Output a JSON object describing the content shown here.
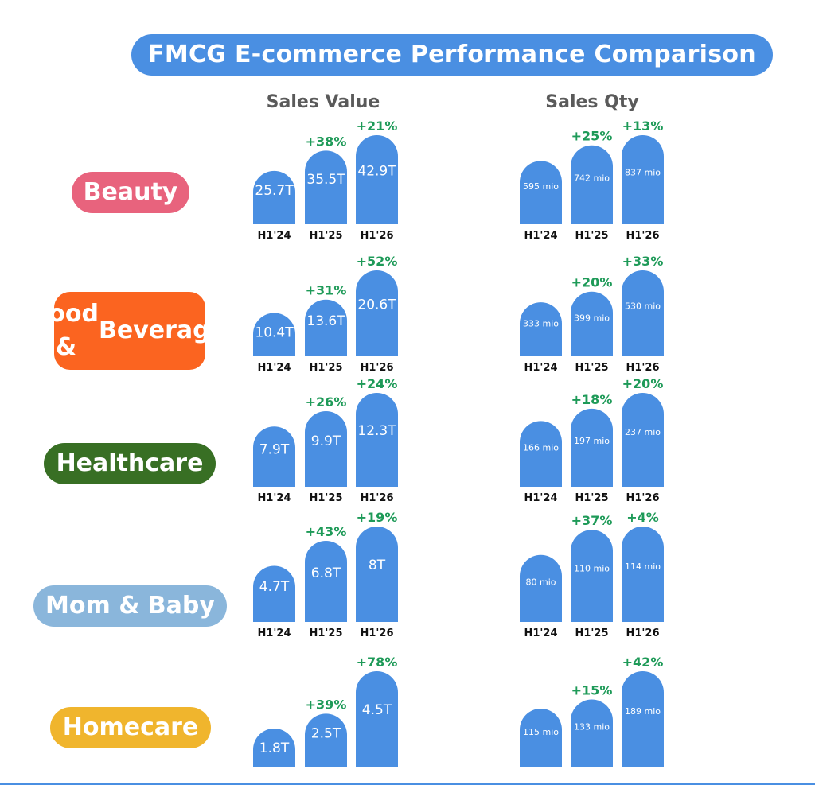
{
  "title": "FMCG E-commerce Performance Comparison",
  "headers": {
    "sales_value": "Sales Value",
    "sales_qty": "Sales Qty"
  },
  "colors": {
    "bar": "#4a8fe2",
    "growth": "#1e9a58",
    "period_label": "#111111",
    "title_bg": "#4a8fe2"
  },
  "chart_data": {
    "type": "bar",
    "categories": [
      "H1'24",
      "H1'25",
      "H1'26"
    ],
    "panels": [
      {
        "name": "Beauty",
        "color": "#e8637d",
        "sales_value": {
          "values": [
            25.7,
            35.5,
            42.9
          ],
          "labels": [
            "25.7T",
            "35.5T",
            "42.9T"
          ],
          "growth": [
            "",
            "+38%",
            "+21%"
          ]
        },
        "sales_qty": {
          "values": [
            595,
            742,
            837
          ],
          "labels": [
            "595 mio",
            "742 mio",
            "837 mio"
          ],
          "growth": [
            "",
            "+25%",
            "+13%"
          ]
        }
      },
      {
        "name": "Food & Beverage",
        "name_lines": [
          "Food &",
          "Beverage"
        ],
        "color": "#fb6420",
        "sales_value": {
          "values": [
            10.4,
            13.6,
            20.6
          ],
          "labels": [
            "10.4T",
            "13.6T",
            "20.6T"
          ],
          "growth": [
            "",
            "+31%",
            "+52%"
          ]
        },
        "sales_qty": {
          "values": [
            333,
            399,
            530
          ],
          "labels": [
            "333 mio",
            "399 mio",
            "530 mio"
          ],
          "growth": [
            "",
            "+20%",
            "+33%"
          ]
        }
      },
      {
        "name": "Healthcare",
        "color": "#386f24",
        "sales_value": {
          "values": [
            7.9,
            9.9,
            12.3
          ],
          "labels": [
            "7.9T",
            "9.9T",
            "12.3T"
          ],
          "growth": [
            "",
            "+26%",
            "+24%"
          ]
        },
        "sales_qty": {
          "values": [
            166,
            197,
            237
          ],
          "labels": [
            "166 mio",
            "197 mio",
            "237 mio"
          ],
          "growth": [
            "",
            "+18%",
            "+20%"
          ]
        }
      },
      {
        "name": "Mom & Baby",
        "color": "#8ab6db",
        "sales_value": {
          "values": [
            4.7,
            6.8,
            8
          ],
          "labels": [
            "4.7T",
            "6.8T",
            "8T"
          ],
          "growth": [
            "",
            "+43%",
            "+19%"
          ]
        },
        "sales_qty": {
          "values": [
            80,
            110,
            114
          ],
          "labels": [
            "80 mio",
            "110 mio",
            "114 mio"
          ],
          "growth": [
            "",
            "+37%",
            "+4%"
          ]
        }
      },
      {
        "name": "Homecare",
        "color": "#f0b52d",
        "sales_value": {
          "values": [
            1.8,
            2.5,
            4.5
          ],
          "labels": [
            "1.8T",
            "2.5T",
            "4.5T"
          ],
          "growth": [
            "",
            "+39%",
            "+78%"
          ]
        },
        "sales_qty": {
          "values": [
            115,
            133,
            189
          ],
          "labels": [
            "115 mio",
            "133 mio",
            "189 mio"
          ],
          "growth": [
            "",
            "+15%",
            "+42%"
          ]
        }
      }
    ]
  }
}
